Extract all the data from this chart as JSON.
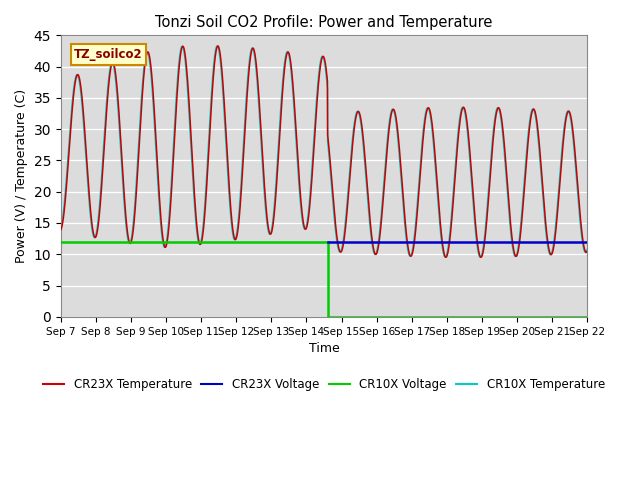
{
  "title": "Tonzi Soil CO2 Profile: Power and Temperature",
  "xlabel": "Time",
  "ylabel": "Power (V) / Temperature (C)",
  "ylim": [
    0,
    45
  ],
  "yticks": [
    0,
    5,
    10,
    15,
    20,
    25,
    30,
    35,
    40,
    45
  ],
  "bg_color": "#dcdcdc",
  "annotation_text": "TZ_soilco2",
  "annotation_bg": "#ffffcc",
  "annotation_border": "#cc8800",
  "x_tick_labels": [
    "Sep 7",
    "Sep 8",
    "Sep 9",
    "Sep 10",
    "Sep 11",
    "Sep 12",
    "Sep 13",
    "Sep 14",
    "Sep 15",
    "Sep 16",
    "Sep 17",
    "Sep 18",
    "Sep 19",
    "Sep 20",
    "Sep 21",
    "Sep 22"
  ],
  "x_tick_positions": [
    7,
    8,
    9,
    10,
    11,
    12,
    13,
    14,
    15,
    16,
    17,
    18,
    19,
    20,
    21,
    22
  ],
  "cr23x_color": "#cc0000",
  "cr10x_color": "#00cccc",
  "cr23x_v_color": "#0000cc",
  "cr10x_v_color": "#00cc00",
  "switch_day": 14.6,
  "voltage_level": 12.0
}
